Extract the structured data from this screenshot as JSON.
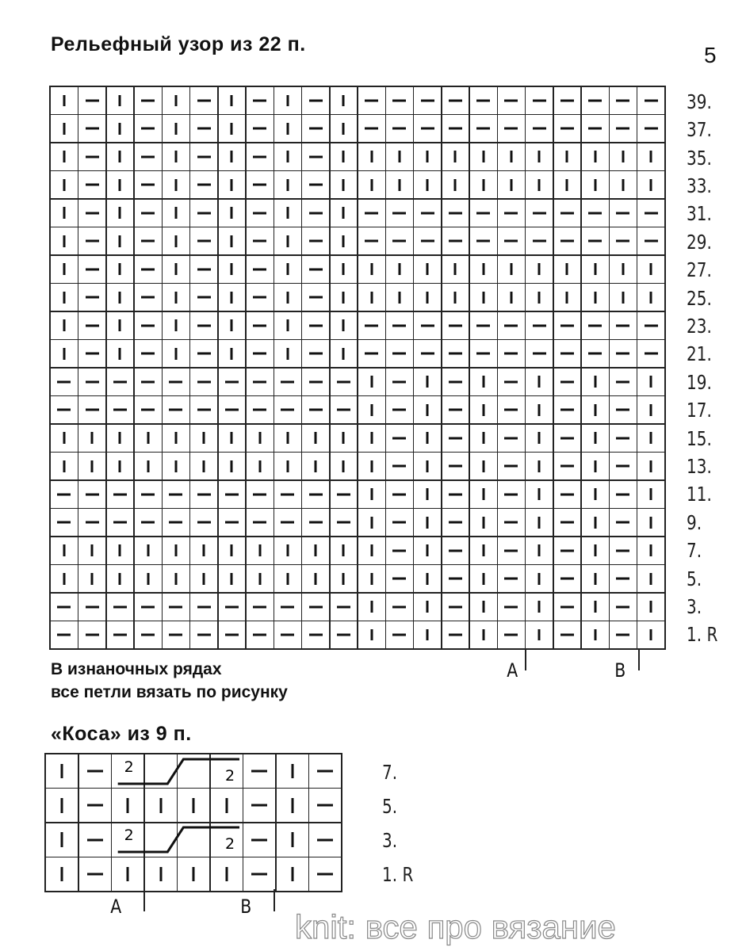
{
  "page_number": "5",
  "main_chart": {
    "title": "Рельефный узор из 22 п.",
    "legend": {
      "|": "knit",
      "-": "purl"
    },
    "columns": 22,
    "row_labels": [
      "39.",
      "37.",
      "35.",
      "33.",
      "31.",
      "29.",
      "27.",
      "25.",
      "23.",
      "21.",
      "19.",
      "17.",
      "15.",
      "13.",
      "11.",
      "9.",
      "7.",
      "5.",
      "3.",
      "1. R"
    ],
    "rows": [
      "|-|-|-|-|-|-----------",
      "|-|-|-|-|-|-----------",
      "|-|-|-|-|-||||||||||||",
      "|-|-|-|-|-||||||||||||",
      "|-|-|-|-|-|-----------",
      "|-|-|-|-|-|-----------",
      "|-|-|-|-|-||||||||||||",
      "|-|-|-|-|-||||||||||||",
      "|-|-|-|-|-|-----------",
      "|-|-|-|-|-|-----------",
      "-----------|-|-|-|-|-|",
      "-----------|-|-|-|-|-|",
      "||||||||||||-|-|-|-|-|",
      "||||||||||||-|-|-|-|-|",
      "-----------|-|-|-|-|-|",
      "-----------|-|-|-|-|-|",
      "||||||||||||-|-|-|-|-|",
      "||||||||||||-|-|-|-|-|",
      "-----------|-|-|-|-|-|",
      "-----------|-|-|-|-|-|"
    ],
    "marker_a": "A",
    "marker_b": "B",
    "note_line1": "В изнаночных рядах",
    "note_line2": "все петли вязать по рисунку"
  },
  "cable_chart": {
    "title": "«Коса» из 9 п.",
    "columns": 9,
    "row_labels": [
      "7.",
      "5.",
      "3.",
      "1. R"
    ],
    "rows": [
      "|-cccc-|-",
      "|-||||-|-",
      "|-cccc-|-",
      "|-||||-|-"
    ],
    "cable_label": "2",
    "marker_a": "A",
    "marker_b": "B"
  },
  "watermark": "knit: все  про вязание"
}
